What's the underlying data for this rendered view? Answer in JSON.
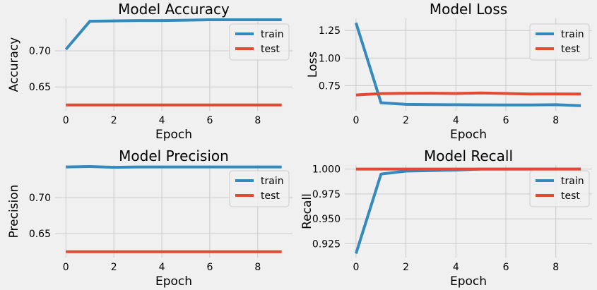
{
  "chart_data": [
    {
      "type": "line",
      "title": "Model Accuracy",
      "xlabel": "Epoch",
      "ylabel": "Accuracy",
      "x": [
        0,
        1,
        2,
        3,
        4,
        5,
        6,
        7,
        8,
        9
      ],
      "xlim": [
        -0.45,
        9.45
      ],
      "ylim": [
        0.617,
        0.745
      ],
      "xticks": [
        0,
        2,
        4,
        6,
        8
      ],
      "yticks": [
        0.65,
        0.7
      ],
      "ytick_labels": [
        "0.65",
        "0.70"
      ],
      "grid": true,
      "legend": "top-right",
      "series": [
        {
          "name": "train",
          "color": "#348ABD",
          "values": [
            0.702,
            0.741,
            0.7415,
            0.742,
            0.742,
            0.7425,
            0.743,
            0.743,
            0.743,
            0.743
          ]
        },
        {
          "name": "test",
          "color": "#E24A33",
          "values": [
            0.625,
            0.625,
            0.625,
            0.625,
            0.625,
            0.625,
            0.625,
            0.625,
            0.625,
            0.625
          ]
        }
      ]
    },
    {
      "type": "line",
      "title": "Model Loss",
      "xlabel": "Epoch",
      "ylabel": "Loss",
      "x": [
        0,
        1,
        2,
        3,
        4,
        5,
        6,
        7,
        8,
        9
      ],
      "xlim": [
        -0.45,
        9.45
      ],
      "ylim": [
        0.522,
        1.36
      ],
      "xticks": [
        0,
        2,
        4,
        6,
        8
      ],
      "yticks": [
        0.75,
        1.0,
        1.25
      ],
      "ytick_labels": [
        "0.75",
        "1.00",
        "1.25"
      ],
      "grid": true,
      "legend": "top-right",
      "series": [
        {
          "name": "train",
          "color": "#348ABD",
          "values": [
            1.32,
            0.595,
            0.58,
            0.578,
            0.577,
            0.576,
            0.575,
            0.575,
            0.577,
            0.568
          ]
        },
        {
          "name": "test",
          "color": "#E24A33",
          "values": [
            0.665,
            0.678,
            0.68,
            0.681,
            0.679,
            0.684,
            0.679,
            0.674,
            0.675,
            0.674
          ]
        }
      ]
    },
    {
      "type": "line",
      "title": "Model Precision",
      "xlabel": "Epoch",
      "ylabel": "Precision",
      "x": [
        0,
        1,
        2,
        3,
        4,
        5,
        6,
        7,
        8,
        9
      ],
      "xlim": [
        -0.45,
        9.45
      ],
      "ylim": [
        0.617,
        0.745
      ],
      "xticks": [
        0,
        2,
        4,
        6,
        8
      ],
      "yticks": [
        0.65,
        0.7
      ],
      "ytick_labels": [
        "0.65",
        "0.70"
      ],
      "grid": true,
      "legend": "top-right",
      "series": [
        {
          "name": "train",
          "color": "#348ABD",
          "values": [
            0.7425,
            0.743,
            0.742,
            0.7425,
            0.7425,
            0.7425,
            0.7425,
            0.7425,
            0.7425,
            0.7425
          ]
        },
        {
          "name": "test",
          "color": "#E24A33",
          "values": [
            0.625,
            0.625,
            0.625,
            0.625,
            0.625,
            0.625,
            0.625,
            0.625,
            0.625,
            0.625
          ]
        }
      ]
    },
    {
      "type": "line",
      "title": "Model Recall",
      "xlabel": "Epoch",
      "ylabel": "Recall",
      "x": [
        0,
        1,
        2,
        3,
        4,
        5,
        6,
        7,
        8,
        9
      ],
      "xlim": [
        -0.45,
        9.45
      ],
      "ylim": [
        0.911,
        1.004
      ],
      "xticks": [
        0,
        2,
        4,
        6,
        8
      ],
      "yticks": [
        0.925,
        0.95,
        0.975,
        1.0
      ],
      "ytick_labels": [
        "0.925",
        "0.950",
        "0.975",
        "1.000"
      ],
      "grid": true,
      "legend": "upper-right, inset",
      "series": [
        {
          "name": "train",
          "color": "#348ABD",
          "values": [
            0.915,
            0.995,
            0.998,
            0.9985,
            0.999,
            1.0,
            1.0,
            1.0,
            1.0,
            1.0
          ]
        },
        {
          "name": "test",
          "color": "#E24A33",
          "values": [
            1.0,
            1.0,
            1.0,
            1.0,
            1.0,
            1.0,
            1.0,
            1.0,
            1.0,
            1.0
          ]
        }
      ]
    }
  ]
}
